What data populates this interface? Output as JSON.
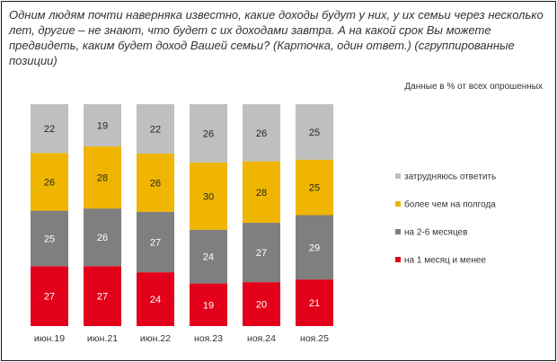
{
  "chart_data": {
    "type": "bar",
    "stacked": true,
    "title": "Одним людям почти наверняка известно, какие доходы будут у них, у их семьи через несколько\nлет, другие – не знают, что будет с их доходами завтра. А на какой срок Вы можете\nпредвидеть, каким будет доход Вашей семьи? (Карточка, один ответ.) (сгруппированные\nпозиции)",
    "note": "Данные в % от всех опрошенных",
    "categories": [
      "июн.19",
      "июн.21",
      "июн.22",
      "ноя.23",
      "ноя.24",
      "ноя.25"
    ],
    "series": [
      {
        "name": "на 1 месяц и менее",
        "color": "#E2001A",
        "label_color": "#FFFFFF",
        "values": [
          27,
          27,
          24,
          19,
          20,
          21
        ]
      },
      {
        "name": "на 2-6 месяцев",
        "color": "#7F7F7F",
        "label_color": "#FFFFFF",
        "values": [
          25,
          26,
          27,
          24,
          27,
          29
        ]
      },
      {
        "name": "более чем на полгода",
        "color": "#EFB500",
        "label_color": "#262626",
        "values": [
          26,
          28,
          26,
          30,
          28,
          25
        ]
      },
      {
        "name": "затрудняюсь ответить",
        "color": "#BFBFBF",
        "label_color": "#262626",
        "values": [
          22,
          19,
          22,
          26,
          26,
          25
        ]
      }
    ],
    "ylim": [
      0,
      100
    ],
    "grid": false,
    "data_labels": true,
    "legend_position": "right"
  }
}
